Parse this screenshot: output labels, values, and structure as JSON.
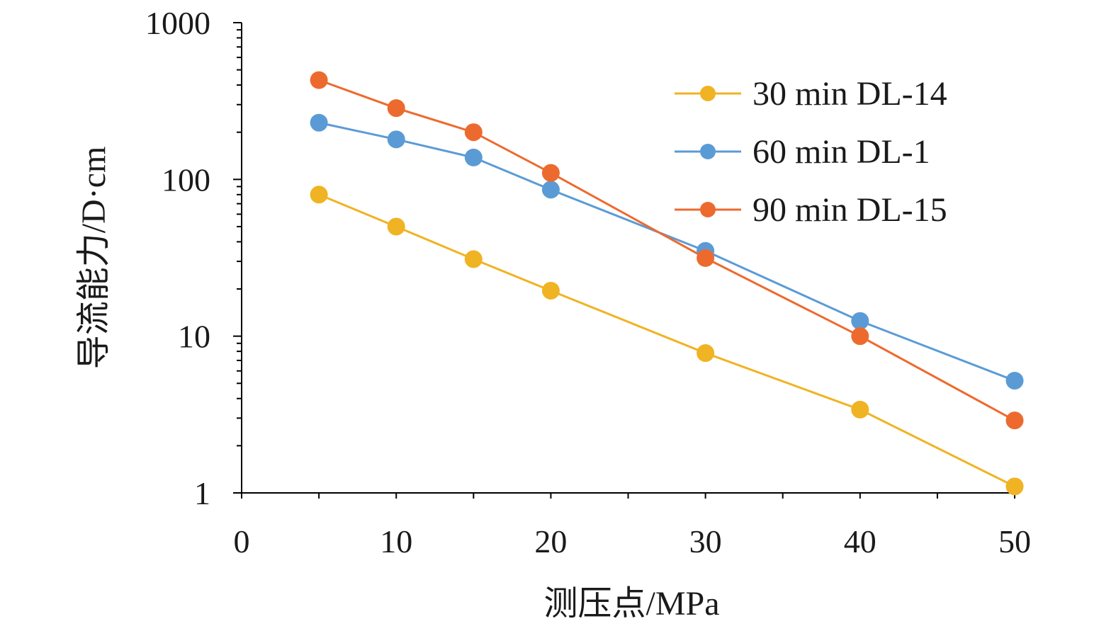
{
  "chart_data": {
    "type": "line",
    "xlabel": "测压点/MPa",
    "ylabel": "导流能力/D·cm",
    "x": [
      5,
      10,
      15,
      20,
      30,
      40,
      50
    ],
    "x_ticks": [
      "0",
      "10",
      "20",
      "30",
      "40",
      "50"
    ],
    "y_ticks": [
      "1",
      "10",
      "100",
      "1000"
    ],
    "xlim": [
      0,
      50
    ],
    "ylim": [
      1,
      1000
    ],
    "yscale": "log",
    "grid": false,
    "legend_position": "top-right",
    "series": [
      {
        "name": "30 min DL-14",
        "color": "#F0B323",
        "values": [
          80,
          50,
          31,
          19.5,
          7.8,
          3.4,
          1.1
        ]
      },
      {
        "name": "60 min DL-1",
        "color": "#5B9BD5",
        "values": [
          230,
          180,
          138,
          86,
          35,
          12.5,
          5.2
        ]
      },
      {
        "name": "90 min DL-15",
        "color": "#ED6A2E",
        "values": [
          430,
          285,
          200,
          110,
          31.5,
          10,
          2.9
        ]
      }
    ]
  }
}
